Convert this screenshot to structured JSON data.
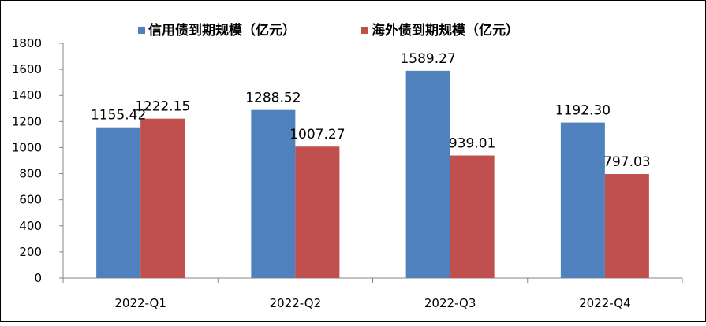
{
  "chart_data": {
    "type": "bar",
    "title": "",
    "xlabel": "",
    "ylabel": "",
    "categories": [
      "2022-Q1",
      "2022-Q2",
      "2022-Q3",
      "2022-Q4"
    ],
    "series": [
      {
        "name": "信用债到期规模（亿元）",
        "color": "#4F81BD",
        "values": [
          1155.42,
          1288.52,
          1589.27,
          1192.3
        ],
        "labels": [
          "1155.42",
          "1288.52",
          "1589.27",
          "1192.30"
        ]
      },
      {
        "name": "海外债到期规模（亿元）",
        "color": "#C0504D",
        "values": [
          1222.15,
          1007.27,
          939.01,
          797.03
        ],
        "labels": [
          "1222.15",
          "1007.27",
          "939.01",
          "797.03"
        ]
      }
    ],
    "ylim": [
      0,
      1800
    ],
    "yticks": [
      0,
      200,
      400,
      600,
      800,
      1000,
      1200,
      1400,
      1600,
      1800
    ],
    "grid": false,
    "legend_position": "top"
  }
}
